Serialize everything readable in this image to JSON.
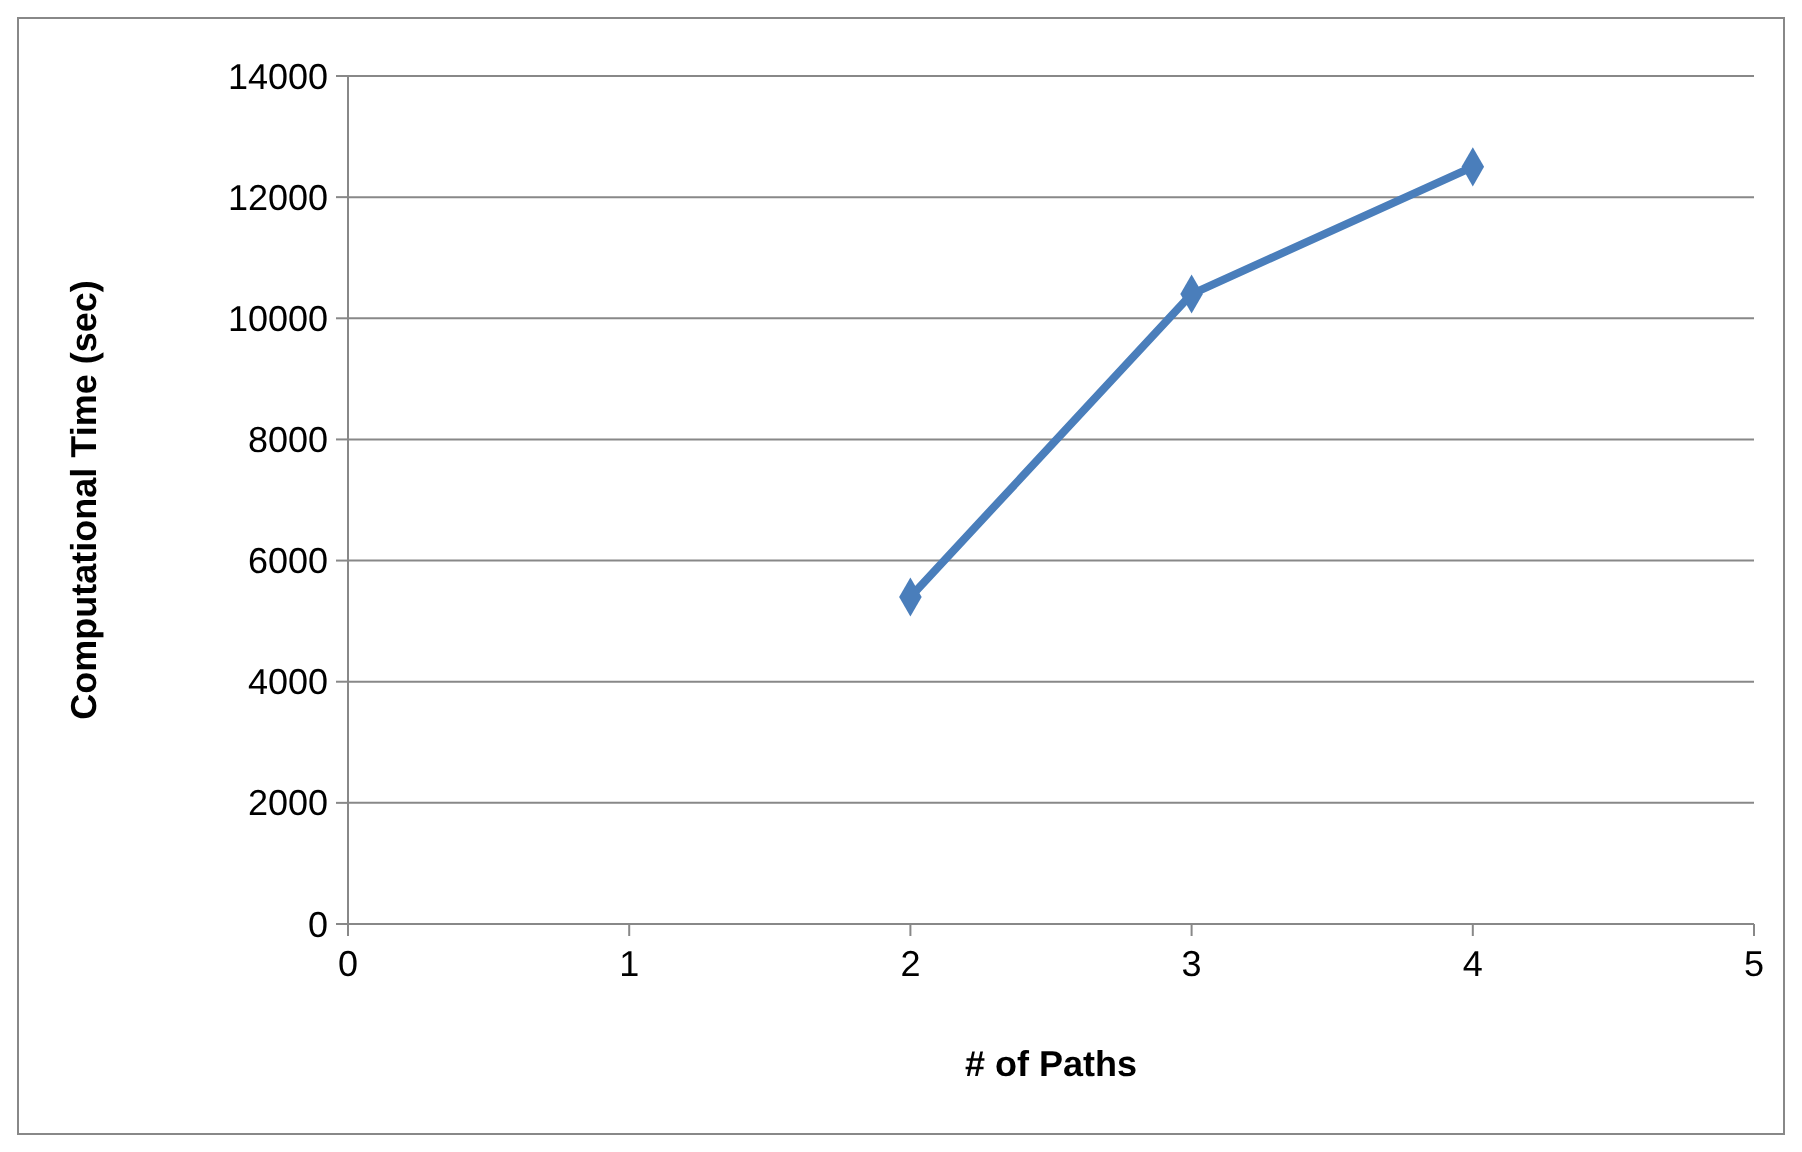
{
  "chart_data": {
    "type": "line",
    "xlabel": "# of Paths",
    "ylabel": "Computational Time (sec)",
    "x": [
      2,
      3,
      4
    ],
    "series": [
      {
        "color": "#4a7ebb",
        "values": [
          5400,
          10400,
          12500
        ]
      }
    ],
    "xlim": [
      0,
      5
    ],
    "xticks": [
      0,
      1,
      2,
      3,
      4,
      5
    ],
    "ylim": [
      0,
      14000
    ],
    "yticks": [
      0,
      2000,
      4000,
      6000,
      8000,
      10000,
      12000,
      14000
    ],
    "grid": "y",
    "marker": "diamond",
    "line_style": "solid"
  }
}
